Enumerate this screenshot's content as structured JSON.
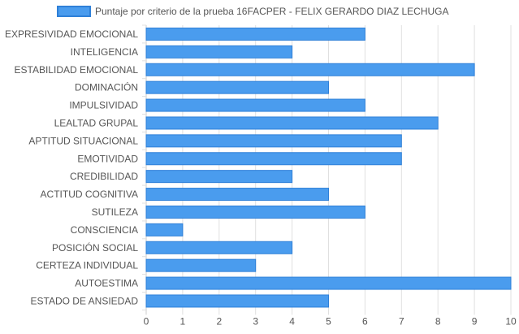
{
  "chart_data": {
    "type": "bar",
    "orientation": "horizontal",
    "title": "",
    "xlabel": "",
    "ylabel": "",
    "categories": [
      "EXPRESIVIDAD EMOCIONAL",
      "INTELIGENCIA",
      "ESTABILIDAD EMOCIONAL",
      "DOMINACIÓN",
      "IMPULSIVIDAD",
      "LEALTAD GRUPAL",
      "APTITUD SITUACIONAL",
      "EMOTIVIDAD",
      "CREDIBILIDAD",
      "ACTITUD COGNITIVA",
      "SUTILEZA",
      "CONSCIENCIA",
      "POSICIÓN SOCIAL",
      "CERTEZA INDIVIDUAL",
      "AUTOESTIMA",
      "ESTADO DE ANSIEDAD"
    ],
    "series": [
      {
        "name": "Puntaje por criterio de la prueba 16FACPER - FELIX GERARDO DIAZ LECHUGA",
        "values": [
          6,
          4,
          9,
          5,
          6,
          8,
          7,
          7,
          4,
          5,
          6,
          1,
          4,
          3,
          10,
          5
        ],
        "color": "#4a9cee",
        "border_color": "#2f80d8"
      }
    ],
    "xlim": [
      0,
      10
    ],
    "xticks": [
      "0",
      "1",
      "2",
      "3",
      "4",
      "5",
      "6",
      "7",
      "8",
      "9",
      "10"
    ],
    "grid": true,
    "legend_position": "top"
  }
}
